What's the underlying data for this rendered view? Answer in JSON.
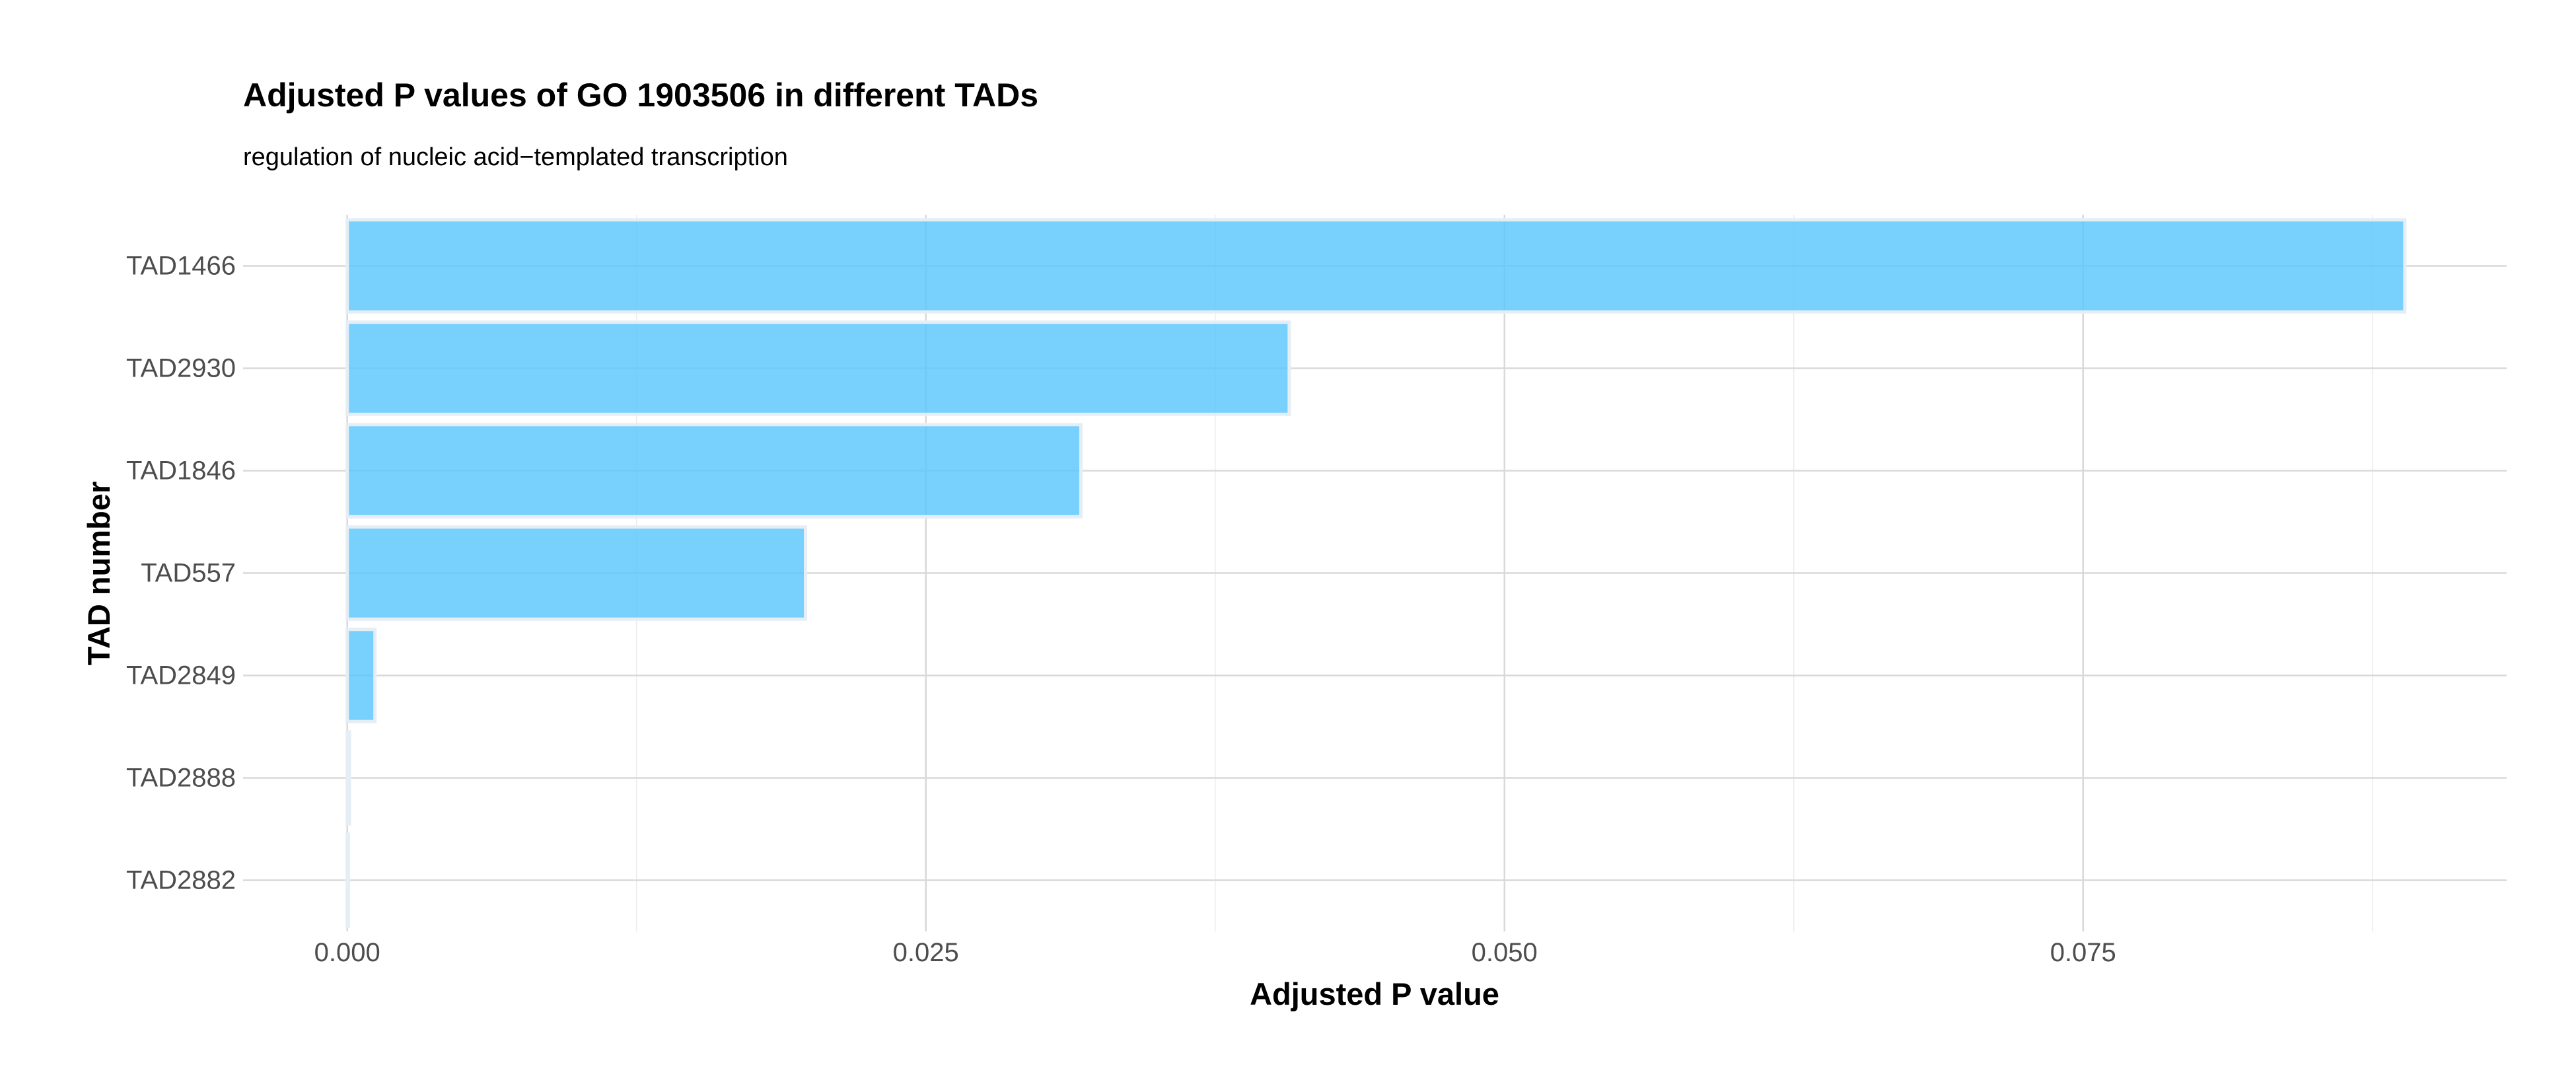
{
  "chart_data": {
    "type": "bar",
    "orientation": "horizontal",
    "title": "Adjusted P values of GO 1903506 in different TADs",
    "subtitle": "regulation of nucleic acid−templated transcription",
    "xlabel": "Adjusted P value",
    "ylabel": "TAD number",
    "categories": [
      "TAD1466",
      "TAD2930",
      "TAD1846",
      "TAD557",
      "TAD2849",
      "TAD2888",
      "TAD2882"
    ],
    "values": [
      0.0889,
      0.0407,
      0.0317,
      0.0198,
      0.0012,
      0.0001,
      5e-05
    ],
    "xlim": [
      -0.0045,
      0.0933
    ],
    "xticks": [
      0.0,
      0.025,
      0.05,
      0.075
    ],
    "xtick_labels": [
      "0.000",
      "0.025",
      "0.050",
      "0.075"
    ],
    "grid": true,
    "legend": "none",
    "colors": {
      "bar_fill": "#56c5fd",
      "bar_stroke": "#e6eef5"
    }
  }
}
